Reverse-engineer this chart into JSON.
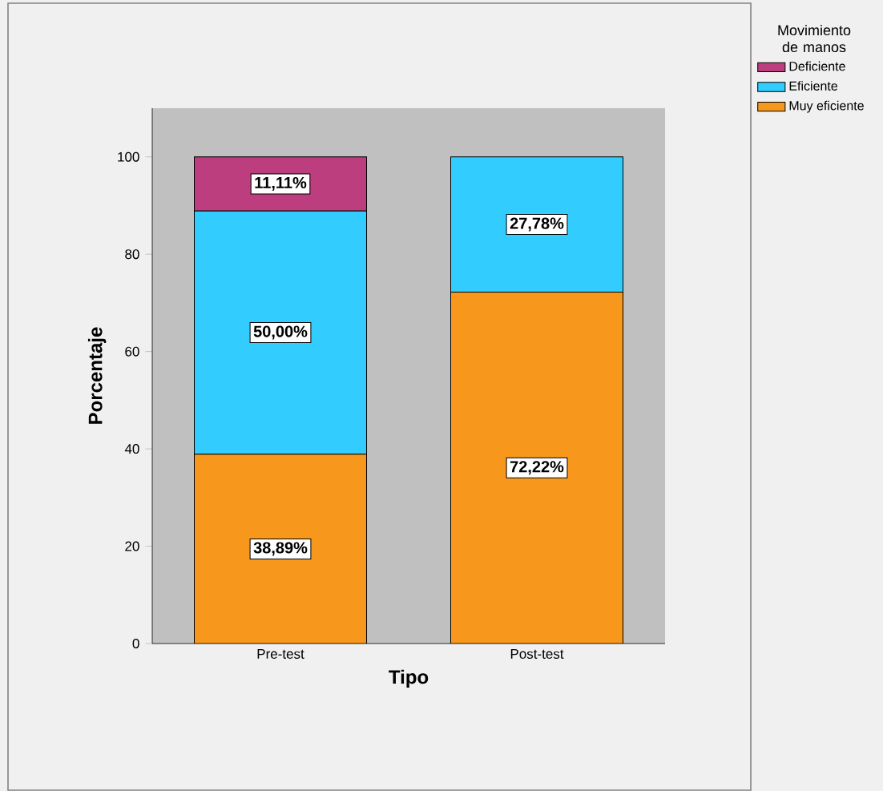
{
  "chart_data": {
    "type": "bar",
    "stacked": true,
    "xlabel": "Tipo",
    "ylabel": "Porcentaje",
    "legend_title": "Movimiento de manos",
    "legend": "right",
    "categories": [
      "Pre-test",
      "Post-test"
    ],
    "ylim": [
      0,
      110
    ],
    "yticks": [
      0,
      20,
      40,
      60,
      80,
      100
    ],
    "series": [
      {
        "name": "Muy eficiente",
        "color": "#f7981d",
        "values": [
          38.89,
          72.22
        ],
        "value_labels": [
          "38,89%",
          "72,22%"
        ]
      },
      {
        "name": "Eficiente",
        "color": "#33ccff",
        "values": [
          50.0,
          27.78
        ],
        "value_labels": [
          "50,00%",
          "27,78%"
        ]
      },
      {
        "name": "Deficiente",
        "color": "#bc3e7f",
        "values": [
          11.11,
          null
        ],
        "value_labels": [
          "11,11%",
          null
        ]
      }
    ]
  }
}
